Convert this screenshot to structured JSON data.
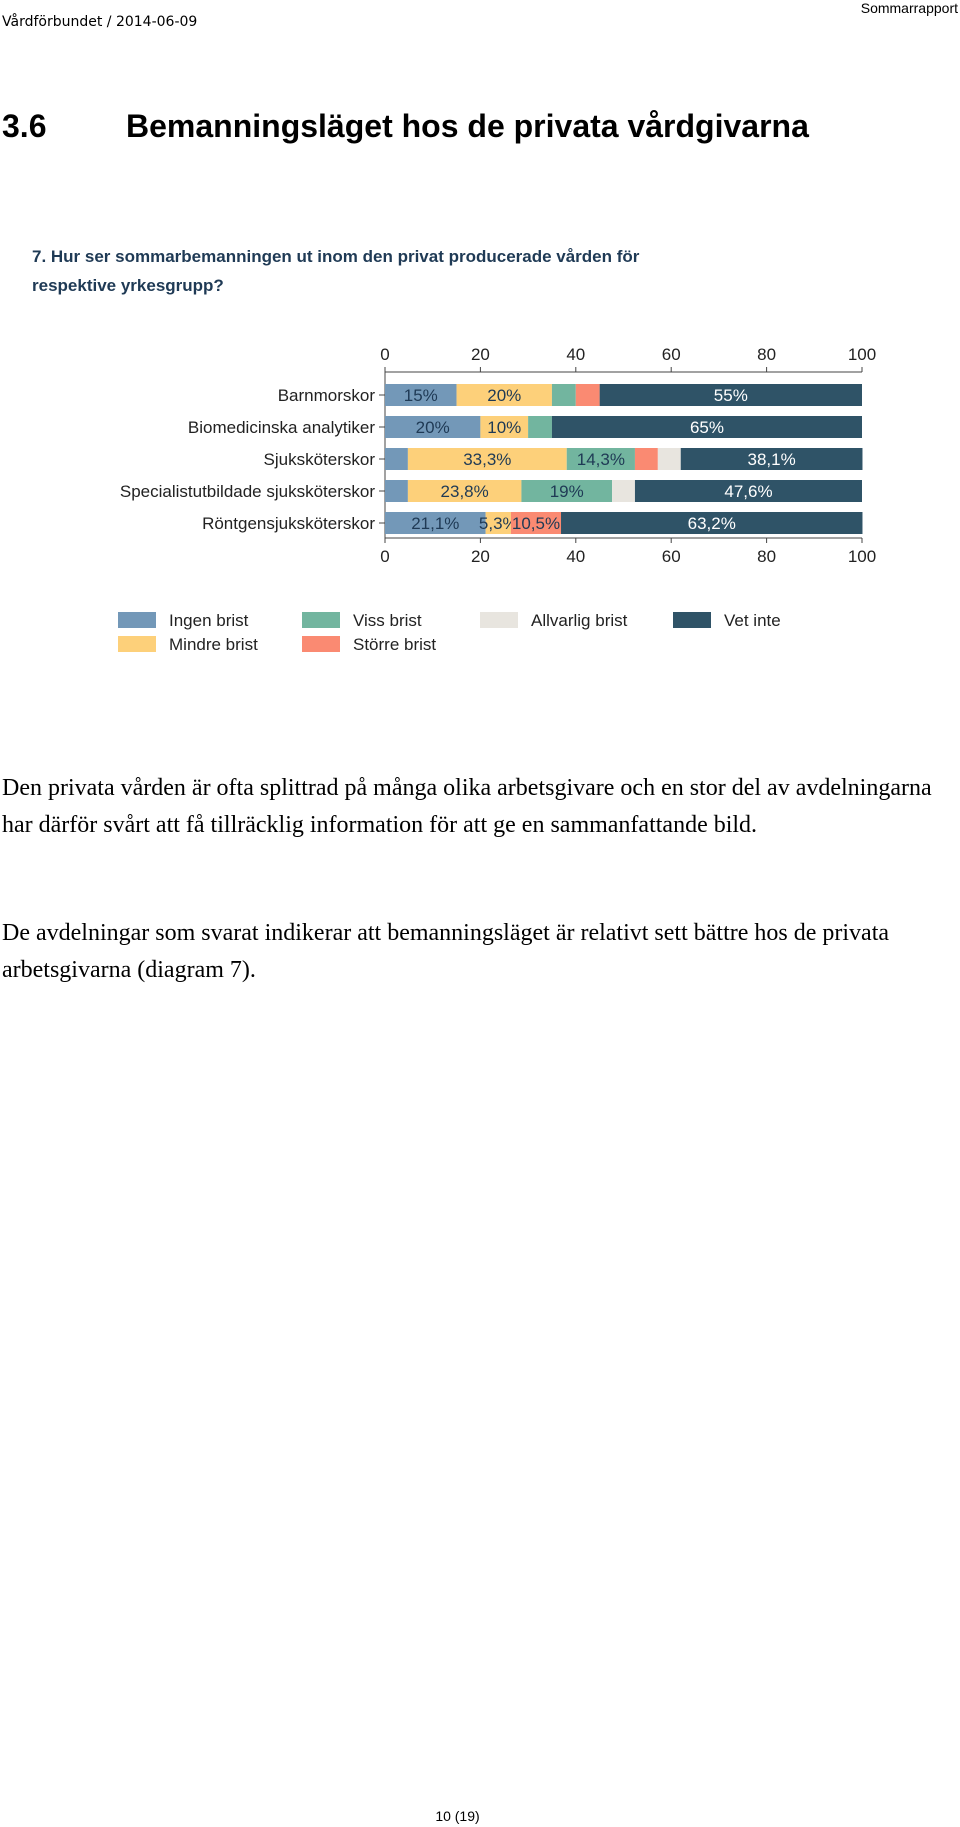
{
  "header": {
    "left": "Vårdförbundet  /  2014-06-09",
    "right": "Sommarrapport"
  },
  "section": {
    "number": "3.6",
    "title": "Bemanningsläget hos de privata vårdgivarna"
  },
  "chart_data": {
    "type": "bar",
    "orientation": "horizontal",
    "stacked": true,
    "title_lines": [
      "7. Hur ser sommarbemanningen ut inom den privat producerade vården för",
      "respektive yrkesgrupp?"
    ],
    "categories": [
      "Barnmorskor",
      "Biomedicinska analytiker",
      "Sjuksköterskor",
      "Specialistutbildade sjuksköterskor",
      "Röntgensjuksköterskor"
    ],
    "xlim": [
      0,
      100
    ],
    "xticks": [
      "0",
      "20",
      "40",
      "60",
      "80",
      "100"
    ],
    "axis_top": true,
    "axis_bottom": true,
    "grid": false,
    "legend_position": "bottom",
    "series": [
      {
        "name": "Ingen brist",
        "color": "#7398b8",
        "values": [
          15,
          20,
          4.8,
          4.8,
          21.1
        ],
        "labels": [
          "15%",
          "20%",
          "",
          "",
          "21,1%"
        ]
      },
      {
        "name": "Mindre brist",
        "color": "#fdd07a",
        "values": [
          20,
          10,
          33.3,
          23.8,
          5.3
        ],
        "labels": [
          "20%",
          "10%",
          "33,3%",
          "23,8%",
          "5,3%"
        ]
      },
      {
        "name": "Viss brist",
        "color": "#72b59f",
        "values": [
          5,
          5,
          14.3,
          19,
          0
        ],
        "labels": [
          "",
          "",
          "14,3%",
          "19%",
          ""
        ]
      },
      {
        "name": "Större brist",
        "color": "#fa8a72",
        "values": [
          5,
          0,
          4.8,
          0,
          10.5
        ],
        "labels": [
          "",
          "",
          "",
          "",
          "10,5%"
        ]
      },
      {
        "name": "Allvarlig brist",
        "color": "#e8e5df",
        "values": [
          0,
          0,
          4.8,
          4.8,
          0
        ],
        "labels": [
          "",
          "",
          "",
          "",
          ""
        ]
      },
      {
        "name": "Vet inte",
        "color": "#2f5367",
        "values": [
          55,
          65,
          38.1,
          47.6,
          63.2
        ],
        "labels": [
          "55%",
          "65%",
          "38,1%",
          "47,6%",
          "63,2%"
        ]
      }
    ],
    "legend_rows": [
      [
        "Ingen brist",
        "Viss brist",
        "Allvarlig brist",
        "Vet inte"
      ],
      [
        "Mindre brist",
        "Större brist"
      ]
    ]
  },
  "paragraphs": [
    "Den privata vården är ofta splittrad på många olika arbetsgivare och en stor del av avdelningarna har därför svårt att få tillräcklig information för att ge en sammanfattande bild.",
    "De avdelningar som svarat indikerar att bemanningsläget är relativt sett bättre hos de privata arbetsgivarna (diagram 7)."
  ],
  "footer": {
    "page": "10 (19)"
  }
}
